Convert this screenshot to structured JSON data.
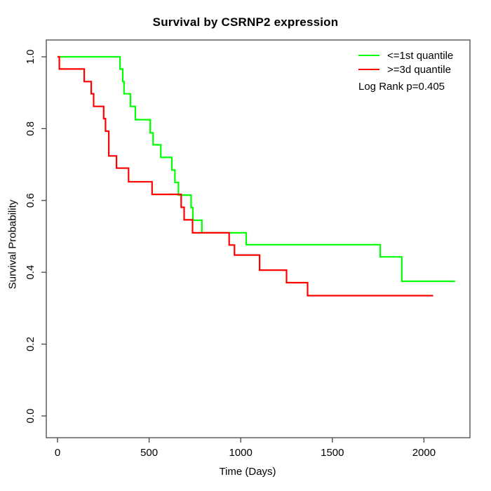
{
  "chart_data": {
    "type": "line",
    "subtype": "kaplan-meier-step",
    "title": "Survival by CSRNP2 expression",
    "xlabel": "Time (Days)",
    "ylabel": "Survival Probability",
    "xlim": [
      0,
      2250
    ],
    "ylim": [
      0,
      1
    ],
    "xticks": [
      0,
      500,
      1000,
      1500,
      2000
    ],
    "yticks": [
      "0.0",
      "0.2",
      "0.4",
      "0.6",
      "0.8",
      "1.0"
    ],
    "grid": false,
    "legend_position": "top-right",
    "annotation": "Log Rank p=0.405",
    "frame_color": "#454545",
    "text_color": "#000000",
    "series": [
      {
        "name": "<=1st quantile",
        "color": "#00FF00",
        "end_day": 2170,
        "steps": [
          [
            0,
            1.0
          ],
          [
            341,
            0.966
          ],
          [
            356,
            0.931
          ],
          [
            363,
            0.897
          ],
          [
            398,
            0.862
          ],
          [
            425,
            0.825
          ],
          [
            506,
            0.788
          ],
          [
            522,
            0.755
          ],
          [
            564,
            0.72
          ],
          [
            624,
            0.685
          ],
          [
            641,
            0.65
          ],
          [
            660,
            0.615
          ],
          [
            729,
            0.58
          ],
          [
            739,
            0.545
          ],
          [
            788,
            0.51
          ],
          [
            1030,
            0.477
          ],
          [
            1761,
            0.443
          ],
          [
            1879,
            0.375
          ]
        ]
      },
      {
        "name": ">=3d quantile",
        "color": "#FF0000",
        "end_day": 2050,
        "steps": [
          [
            0,
            1.0
          ],
          [
            10,
            0.966
          ],
          [
            146,
            0.931
          ],
          [
            184,
            0.897
          ],
          [
            197,
            0.862
          ],
          [
            252,
            0.828
          ],
          [
            262,
            0.793
          ],
          [
            280,
            0.724
          ],
          [
            322,
            0.69
          ],
          [
            388,
            0.652
          ],
          [
            516,
            0.617
          ],
          [
            675,
            0.581
          ],
          [
            691,
            0.546
          ],
          [
            737,
            0.51
          ],
          [
            937,
            0.476
          ],
          [
            966,
            0.448
          ],
          [
            1103,
            0.406
          ],
          [
            1250,
            0.371
          ],
          [
            1365,
            0.335
          ]
        ]
      }
    ]
  }
}
